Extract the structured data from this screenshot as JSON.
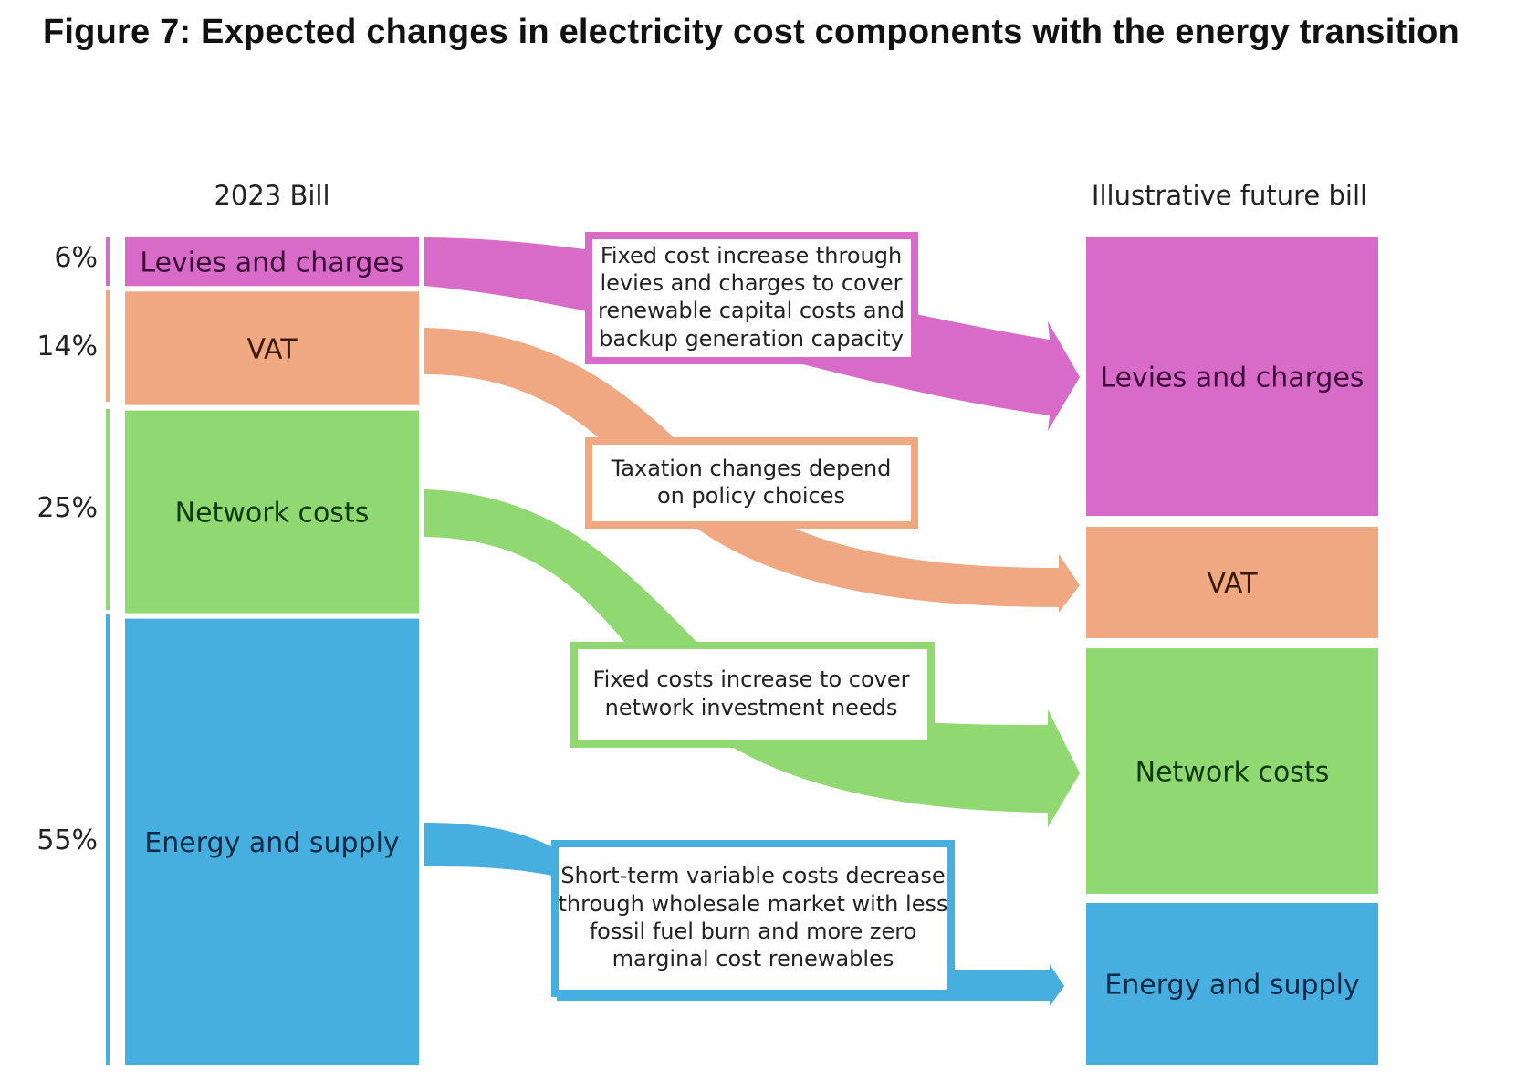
{
  "title": "Figure 7: Expected changes in electricity cost components with the energy transition",
  "colors": {
    "levies": "#d96bc8",
    "vat": "#f0a882",
    "network": "#8fd872",
    "energy": "#47afe0"
  },
  "chart_data": {
    "type": "bar",
    "title": "Figure 7: Expected changes in electricity cost components with the energy transition",
    "bars": [
      {
        "label": "2023 Bill",
        "segments": [
          {
            "name": "Levies and charges",
            "value": 6,
            "value_label": "6%"
          },
          {
            "name": "VAT",
            "value": 14,
            "value_label": "14%"
          },
          {
            "name": "Network costs",
            "value": 25,
            "value_label": "25%"
          },
          {
            "name": "Energy and supply",
            "value": 55,
            "value_label": "55%"
          }
        ]
      },
      {
        "label": "Illustrative future bill",
        "segments": [
          {
            "name": "Levies and charges"
          },
          {
            "name": "VAT"
          },
          {
            "name": "Network costs"
          },
          {
            "name": "Energy and supply"
          }
        ]
      }
    ],
    "annotations": [
      [
        "Fixed cost increase through",
        "levies and charges to cover",
        "renewable capital costs and",
        "backup generation capacity"
      ],
      [
        "Taxation changes depend",
        "on policy choices"
      ],
      [
        "Fixed costs increase to cover",
        "network investment needs"
      ],
      [
        "Short-term variable costs decrease",
        "through wholesale market with less",
        "fossil fuel burn and more zero",
        "marginal cost renewables"
      ]
    ]
  }
}
